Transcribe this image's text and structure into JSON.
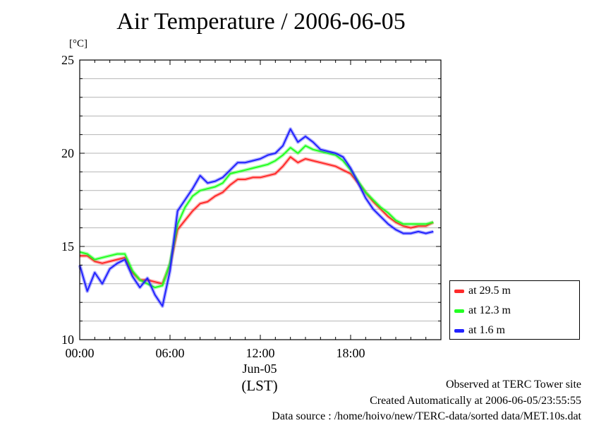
{
  "title": "Air Temperature / 2006-06-05",
  "unit": "[°C]",
  "date_label": "Jun-05",
  "timezone_label": "(LST)",
  "footer": {
    "observed": "Observed at TERC Tower site",
    "created": "Created Automatically at 2006-06-05/23:55:55",
    "source": "Data source : /home/hoivo/new/TERC-data/sorted  data/MET.10s.dat"
  },
  "chart_data": {
    "type": "line",
    "title": "Air Temperature / 2006-06-05",
    "xlabel": "(LST)",
    "ylabel": "[°C]",
    "xlim": [
      0,
      24
    ],
    "ylim": [
      10,
      25
    ],
    "x_ticks": [
      0,
      6,
      12,
      18
    ],
    "x_tick_labels": [
      "00:00",
      "06:00",
      "12:00",
      "18:00"
    ],
    "y_ticks": [
      10,
      15,
      20,
      25
    ],
    "y_tick_labels": [
      "10",
      "15",
      "20",
      "25"
    ],
    "grid": "horizontal",
    "legend_position": "bottom-right outside",
    "x": [
      0,
      0.5,
      1,
      1.5,
      2,
      2.5,
      3,
      3.5,
      4,
      4.5,
      5,
      5.5,
      6,
      6.5,
      7,
      7.5,
      8,
      8.5,
      9,
      9.5,
      10,
      10.5,
      11,
      11.5,
      12,
      12.5,
      13,
      13.5,
      14,
      14.5,
      15,
      15.5,
      16,
      16.5,
      17,
      17.5,
      18,
      18.5,
      19,
      19.5,
      20,
      20.5,
      21,
      21.5,
      22,
      22.5,
      23,
      23.5
    ],
    "series": [
      {
        "name": "at 29.5 m",
        "color": "#ff2a2a",
        "values": [
          14.5,
          14.5,
          14.2,
          14.1,
          14.2,
          14.3,
          14.4,
          13.6,
          13.2,
          13.2,
          13.1,
          13.0,
          14.0,
          15.9,
          16.4,
          16.9,
          17.3,
          17.4,
          17.7,
          17.9,
          18.3,
          18.6,
          18.6,
          18.7,
          18.7,
          18.8,
          18.9,
          19.3,
          19.8,
          19.5,
          19.7,
          19.6,
          19.5,
          19.4,
          19.3,
          19.1,
          18.9,
          18.4,
          17.9,
          17.4,
          17.0,
          16.6,
          16.3,
          16.1,
          16.0,
          16.1,
          16.1,
          16.3
        ]
      },
      {
        "name": "at 12.3 m",
        "color": "#22ff22",
        "values": [
          14.7,
          14.6,
          14.3,
          14.4,
          14.5,
          14.6,
          14.6,
          13.7,
          13.2,
          13.0,
          12.8,
          12.9,
          14.1,
          16.2,
          17.1,
          17.7,
          18.0,
          18.1,
          18.2,
          18.4,
          18.9,
          19.0,
          19.1,
          19.2,
          19.3,
          19.4,
          19.6,
          19.9,
          20.3,
          20.0,
          20.4,
          20.2,
          20.1,
          20.0,
          19.9,
          19.6,
          19.1,
          18.5,
          17.9,
          17.5,
          17.1,
          16.8,
          16.4,
          16.2,
          16.2,
          16.2,
          16.2,
          16.3
        ]
      },
      {
        "name": "at 1.6 m",
        "color": "#2222ff",
        "values": [
          14.0,
          12.6,
          13.6,
          13.0,
          13.8,
          14.1,
          14.3,
          13.4,
          12.8,
          13.3,
          12.4,
          11.8,
          13.7,
          16.9,
          17.5,
          18.1,
          18.8,
          18.4,
          18.5,
          18.7,
          19.1,
          19.5,
          19.5,
          19.6,
          19.7,
          19.9,
          20.0,
          20.4,
          21.3,
          20.6,
          20.9,
          20.6,
          20.2,
          20.1,
          20.0,
          19.8,
          19.2,
          18.4,
          17.6,
          17.0,
          16.6,
          16.2,
          15.9,
          15.7,
          15.7,
          15.8,
          15.7,
          15.8
        ]
      }
    ]
  }
}
